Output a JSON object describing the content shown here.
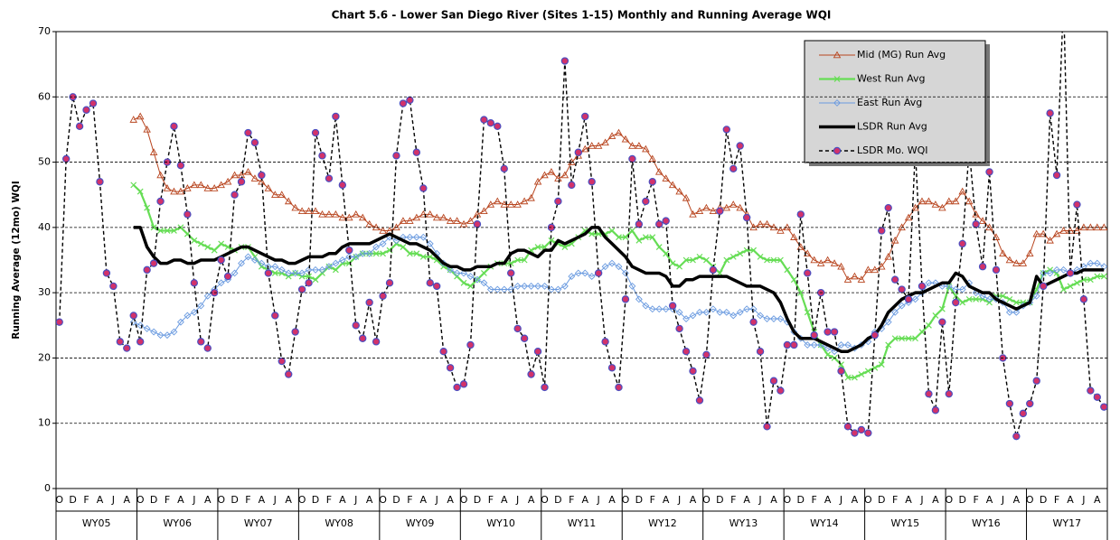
{
  "chart_data": {
    "type": "line",
    "title": "Chart 5.6 - Lower San Diego River (Sites 1-15) Monthly and Running Average WQI",
    "y_label": "Running Average (12mo) WQI",
    "categories": [
      "O",
      null,
      "D",
      null,
      "F",
      null,
      "A",
      null,
      "J",
      null,
      "A",
      null,
      "O",
      null,
      "D",
      null,
      "F",
      null,
      "A",
      null,
      "J",
      null,
      "A",
      null,
      "O",
      null,
      "D",
      null,
      "F",
      null,
      "A",
      null,
      "J",
      null,
      "A",
      null,
      "O",
      null,
      "D",
      null,
      "F",
      null,
      "A",
      null,
      "J",
      null,
      "A",
      null,
      "O",
      null,
      "D",
      null,
      "F",
      null,
      "A",
      null,
      "J",
      null,
      "A",
      null,
      "O",
      null,
      "D",
      null,
      "F",
      null,
      "A",
      null,
      "J",
      null,
      "A",
      null,
      "O",
      null,
      "D",
      null,
      "F",
      null,
      "A",
      null,
      "J",
      null,
      "A",
      null,
      "O",
      null,
      "D",
      null,
      "F",
      null,
      "A",
      null,
      "J",
      null,
      "A",
      null,
      "O",
      null,
      "D",
      null,
      "F",
      null,
      "A",
      null,
      "J",
      null,
      "A",
      null,
      "O",
      null,
      "D",
      null,
      "F",
      null,
      "A",
      null,
      "J",
      null,
      "A",
      null,
      "O",
      null,
      "D",
      null,
      "F",
      null,
      "A",
      null,
      "J",
      null,
      "A",
      null,
      "O",
      null,
      "D",
      null,
      "F",
      null,
      "A",
      null,
      "J",
      null,
      "A",
      null,
      "O",
      null,
      "D",
      null,
      "F",
      null,
      "A",
      null,
      "J",
      null,
      "A",
      null
    ],
    "group_labels": [
      "WY05",
      "WY06",
      "WY07",
      "WY08",
      "WY09",
      "WY10",
      "WY11",
      "WY12",
      "WY13",
      "WY14",
      "WY15",
      "WY16",
      "WY17"
    ],
    "ylim": [
      0,
      70
    ],
    "yticks": [
      0,
      10,
      20,
      30,
      40,
      50,
      60,
      70
    ],
    "grid": true,
    "series": [
      {
        "name": "Mid (MG) Run Avg",
        "color": "#b8451f",
        "marker": "triangle",
        "values": [
          null,
          null,
          null,
          null,
          null,
          null,
          null,
          null,
          null,
          null,
          null,
          56.5,
          57,
          55,
          51.5,
          48,
          46,
          45.5,
          45.5,
          46,
          46.5,
          46.5,
          46,
          46,
          46.5,
          47,
          48,
          48,
          48.5,
          47.5,
          47,
          46,
          45,
          45,
          44,
          43,
          42.5,
          42.5,
          42.5,
          42,
          42,
          42,
          41.5,
          41.5,
          42,
          41.5,
          40.5,
          40,
          39.5,
          39.5,
          40,
          41,
          41,
          41.5,
          42,
          42,
          41.5,
          41.5,
          41,
          41,
          40.5,
          41,
          42,
          42.5,
          43.5,
          44,
          43.5,
          43.5,
          43.5,
          44,
          44.5,
          47,
          48,
          48.5,
          47.5,
          48,
          50,
          51,
          52,
          52.5,
          52.5,
          53,
          54,
          54.5,
          53.5,
          52.5,
          52.5,
          52,
          50.5,
          48.5,
          47.5,
          46.5,
          45.5,
          44.5,
          42,
          42.5,
          43,
          42.5,
          43,
          43,
          43.5,
          43,
          42,
          40,
          40.5,
          40.5,
          40,
          39.5,
          40,
          38.5,
          37,
          36,
          35,
          34.5,
          35,
          34.5,
          34,
          32,
          32.5,
          32,
          33.5,
          33.5,
          34,
          35.5,
          38,
          40,
          41.5,
          43,
          44,
          44,
          43.5,
          43,
          44,
          44,
          45.5,
          44,
          42,
          41,
          40,
          38.5,
          36,
          35,
          34.5,
          34.5,
          36,
          39,
          39,
          38,
          39,
          39.5,
          39.5,
          39.5,
          40,
          40,
          40,
          40
        ]
      },
      {
        "name": "West Run Avg",
        "color": "#66dd55",
        "marker": "x",
        "values": [
          null,
          null,
          null,
          null,
          null,
          null,
          null,
          null,
          null,
          null,
          null,
          46.5,
          45.5,
          43,
          40,
          39.5,
          39.5,
          39.5,
          40,
          39,
          38,
          37.5,
          37,
          36.5,
          37.5,
          37,
          36.5,
          37,
          37,
          35.5,
          34,
          33.5,
          33,
          33,
          32.5,
          33,
          32.5,
          32.5,
          32,
          33,
          34,
          33.5,
          34.5,
          34.5,
          35.5,
          36,
          36,
          36,
          36,
          36.5,
          37.5,
          37,
          36,
          36,
          35.5,
          35.5,
          35,
          34,
          33.5,
          32.5,
          31.5,
          31,
          32,
          33,
          34,
          34.5,
          34.5,
          34.5,
          35,
          35,
          36.5,
          37,
          37,
          38,
          37.5,
          37,
          37.5,
          38.5,
          39.5,
          39,
          39,
          39,
          39.5,
          38.5,
          38.5,
          39.5,
          38,
          38.5,
          38.5,
          37,
          36,
          34.5,
          34,
          35,
          35,
          35.5,
          35,
          34,
          33,
          35,
          35.5,
          36,
          36.5,
          36.5,
          35.5,
          35,
          35,
          35,
          33.5,
          32,
          30,
          27,
          24,
          22,
          20.5,
          20,
          19,
          17,
          17,
          17.5,
          18,
          18.5,
          19,
          22,
          23,
          23,
          23,
          23,
          24,
          25,
          26.5,
          27.5,
          31,
          29.5,
          28.5,
          29,
          29,
          29,
          28.5,
          29.5,
          29.5,
          29,
          28.5,
          28.5,
          28.5,
          30.5,
          33,
          33.5,
          33,
          30.5,
          31,
          31.5,
          32,
          32,
          32.5,
          32.5
        ]
      },
      {
        "name": "East Run Avg",
        "color": "#6b9be0",
        "marker": "diamond",
        "values": [
          null,
          null,
          null,
          null,
          null,
          null,
          null,
          null,
          null,
          null,
          null,
          25.5,
          25,
          24.5,
          24,
          23.5,
          23.5,
          24,
          25.5,
          26.5,
          27,
          28,
          29.5,
          30.5,
          31.5,
          32,
          33,
          34.5,
          35.5,
          35,
          34.5,
          34,
          34,
          33.5,
          33,
          33,
          33,
          33.5,
          33.5,
          33.5,
          34,
          34.5,
          35,
          35.5,
          35.5,
          36,
          36,
          37,
          37.5,
          38.5,
          38,
          38.5,
          38.5,
          38.5,
          38.5,
          37.5,
          36,
          34.5,
          33.5,
          33,
          33,
          32.5,
          32,
          31.5,
          30.5,
          30.5,
          30.5,
          30.5,
          31,
          31,
          31,
          31,
          31,
          30.5,
          30.5,
          31,
          32.5,
          33,
          33,
          32.5,
          33,
          34,
          34.5,
          34,
          33,
          31,
          29,
          28,
          27.5,
          27.5,
          27.5,
          27.5,
          27,
          26,
          26.5,
          27,
          27,
          27.5,
          27,
          27,
          26.5,
          27,
          27.5,
          27.5,
          26.5,
          26,
          26,
          26,
          25.5,
          24,
          23,
          22,
          22,
          22,
          21.5,
          21,
          22,
          22,
          21.5,
          22,
          22.5,
          24,
          24.5,
          25.5,
          27,
          28,
          28.5,
          29,
          30,
          31.5,
          31.5,
          31,
          31,
          30.5,
          30.5,
          31.5,
          30,
          29.5,
          29,
          29,
          28.5,
          27,
          27,
          28,
          28.5,
          29.5,
          33,
          33,
          33.5,
          33.5,
          33,
          33.5,
          34,
          34.5,
          34.5,
          34
        ]
      },
      {
        "name": "LSDR Run Avg",
        "color": "#000000",
        "marker": "none",
        "values": [
          null,
          null,
          null,
          null,
          null,
          null,
          null,
          null,
          null,
          null,
          null,
          40,
          40,
          37,
          35.5,
          34.5,
          34.5,
          35,
          35,
          34.5,
          34.5,
          35,
          35,
          35,
          35.5,
          36,
          36.5,
          37,
          37,
          36.5,
          36,
          35.5,
          35,
          35,
          34.5,
          34.5,
          35,
          35.5,
          35.5,
          35.5,
          36,
          36,
          37,
          37.5,
          37.5,
          37.5,
          37.5,
          38,
          38.5,
          39,
          38.5,
          38,
          37.5,
          37.5,
          37,
          36.5,
          35.5,
          34.5,
          34,
          34,
          33.5,
          33.5,
          34,
          34,
          34,
          34.5,
          34.5,
          36,
          36.5,
          36.5,
          36,
          35.5,
          36.5,
          36.5,
          38,
          37.5,
          38,
          38.5,
          39,
          40,
          40,
          38.5,
          37.5,
          36.5,
          35.5,
          34,
          33.5,
          33,
          33,
          33,
          32.5,
          31,
          31,
          32,
          32,
          32.5,
          32.5,
          32.5,
          32.5,
          32.5,
          32,
          31.5,
          31,
          31,
          31,
          30.5,
          30,
          28.5,
          26,
          24,
          23,
          23,
          23,
          22.5,
          22,
          21.5,
          21,
          21,
          21.5,
          22,
          23,
          23.5,
          25,
          27,
          28,
          29,
          29.5,
          30,
          30,
          30.5,
          31,
          31.5,
          31.5,
          33,
          32.5,
          31,
          30.5,
          30,
          30,
          29,
          28.5,
          28,
          27.5,
          28,
          28.5,
          32.5,
          31,
          31.5,
          32,
          32.5,
          33,
          33,
          33.5,
          33.5,
          33.5,
          33.5
        ]
      },
      {
        "name": "LSDR Mo. WQI",
        "color": "#000000",
        "marker": "circle",
        "dashed": true,
        "values": [
          25.5,
          50.5,
          60,
          55.5,
          58,
          59,
          47,
          33,
          31,
          22.5,
          21.5,
          26.5,
          22.5,
          33.5,
          34.5,
          44,
          50,
          55.5,
          49.5,
          42,
          31.5,
          22.5,
          21.5,
          30,
          35,
          32.5,
          45,
          47,
          54.5,
          53,
          48,
          33,
          26.5,
          19.5,
          17.5,
          24,
          30.5,
          31.5,
          54.5,
          51,
          47.5,
          57,
          46.5,
          36.5,
          25,
          23,
          28.5,
          22.5,
          29.5,
          31.5,
          51,
          59,
          59.5,
          51.5,
          46,
          31.5,
          31,
          21,
          18.5,
          15.5,
          16,
          22,
          40.5,
          56.5,
          56,
          55.5,
          49,
          33,
          24.5,
          23,
          17.5,
          21,
          15.5,
          40,
          44,
          65.5,
          46.5,
          51.5,
          57,
          47,
          33,
          22.5,
          18.5,
          15.5,
          29,
          50.5,
          40.5,
          44,
          47,
          40.5,
          41,
          28,
          24.5,
          21,
          18,
          13.5,
          20.5,
          33.5,
          42.5,
          55,
          49,
          52.5,
          41.5,
          25.5,
          21,
          9.5,
          16.5,
          15,
          22,
          22,
          42,
          33,
          23.5,
          30,
          24,
          24,
          18,
          9.5,
          8.5,
          9,
          8.5,
          23.5,
          39.5,
          43,
          32,
          30.5,
          29,
          52,
          31,
          14.5,
          12,
          25.5,
          14.5,
          28.5,
          37.5,
          52,
          40.5,
          34,
          48.5,
          33.5,
          20,
          13,
          8,
          11.5,
          13,
          16.5,
          31,
          57.5,
          48,
          75,
          33,
          43.5,
          29,
          15,
          14,
          12.5
        ]
      }
    ]
  }
}
